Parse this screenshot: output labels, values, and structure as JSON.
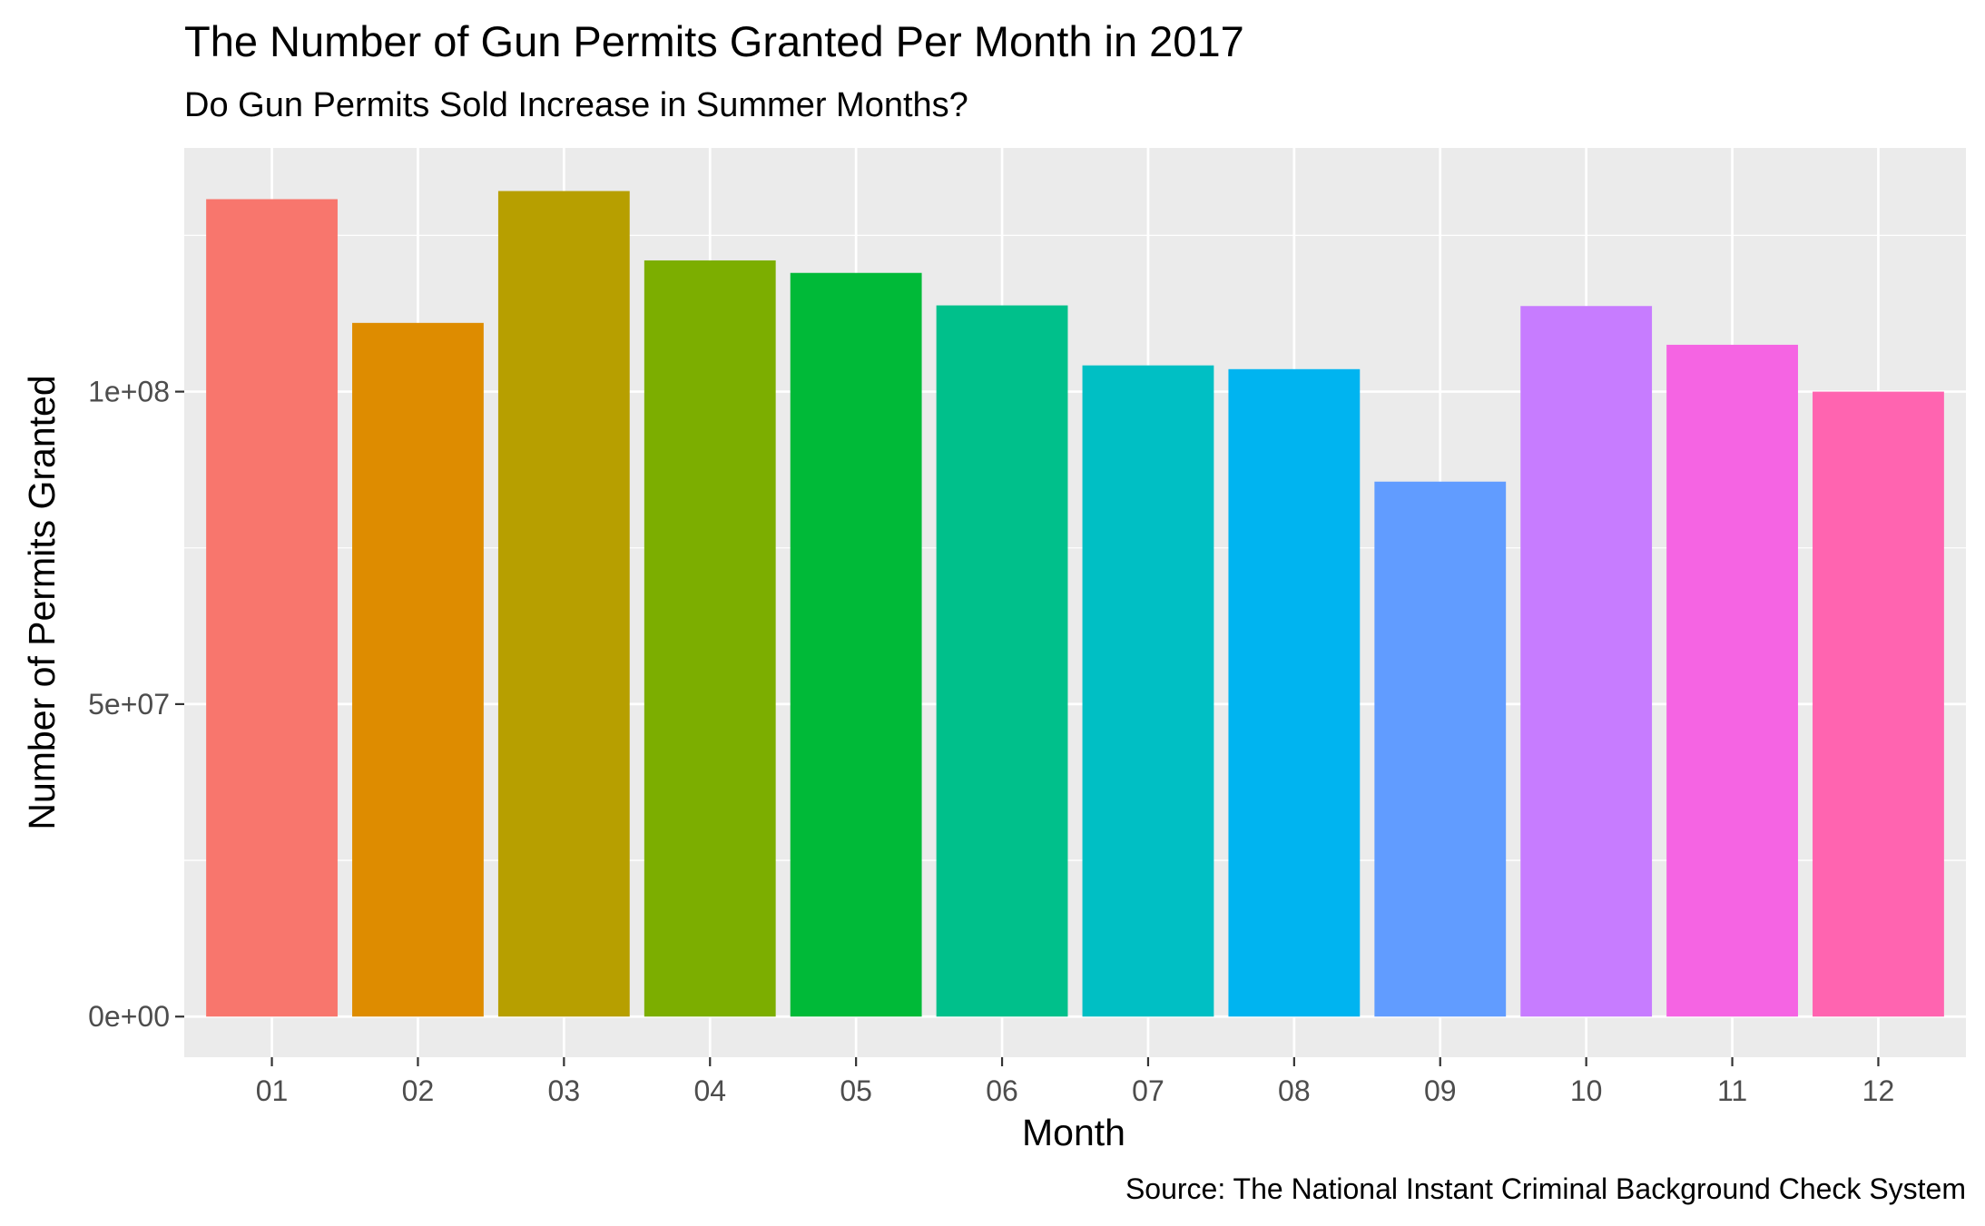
{
  "chart_data": {
    "type": "bar",
    "title": "The Number of Gun Permits Granted Per Month in 2017",
    "subtitle": "Do Gun Permits Sold Increase in Summer Months?",
    "caption": "Source: The National Instant Criminal Background Check System",
    "xlabel": "Month",
    "ylabel": "Number of Permits Granted",
    "categories": [
      "01",
      "02",
      "03",
      "04",
      "05",
      "06",
      "07",
      "08",
      "09",
      "10",
      "11",
      "12"
    ],
    "values": [
      130800000,
      111000000,
      132100000,
      121000000,
      119000000,
      113800000,
      104200000,
      103600000,
      85600000,
      113700000,
      107500000,
      100000000
    ],
    "colors": [
      "#F8766D",
      "#DE8C00",
      "#B79F00",
      "#7CAE00",
      "#00BA38",
      "#00C08B",
      "#00BFC4",
      "#00B4F0",
      "#619CFF",
      "#C77CFF",
      "#F564E3",
      "#FF64B0"
    ],
    "ylim": [
      -6500000,
      139000000
    ],
    "yticks": [
      0,
      50000000,
      100000000
    ],
    "yticklabels": [
      "0e+00",
      "5e+07",
      "1e+08"
    ],
    "yminor": [
      25000000,
      75000000,
      125000000
    ],
    "grid": true,
    "background": "#EBEBEB",
    "legend": "none"
  }
}
